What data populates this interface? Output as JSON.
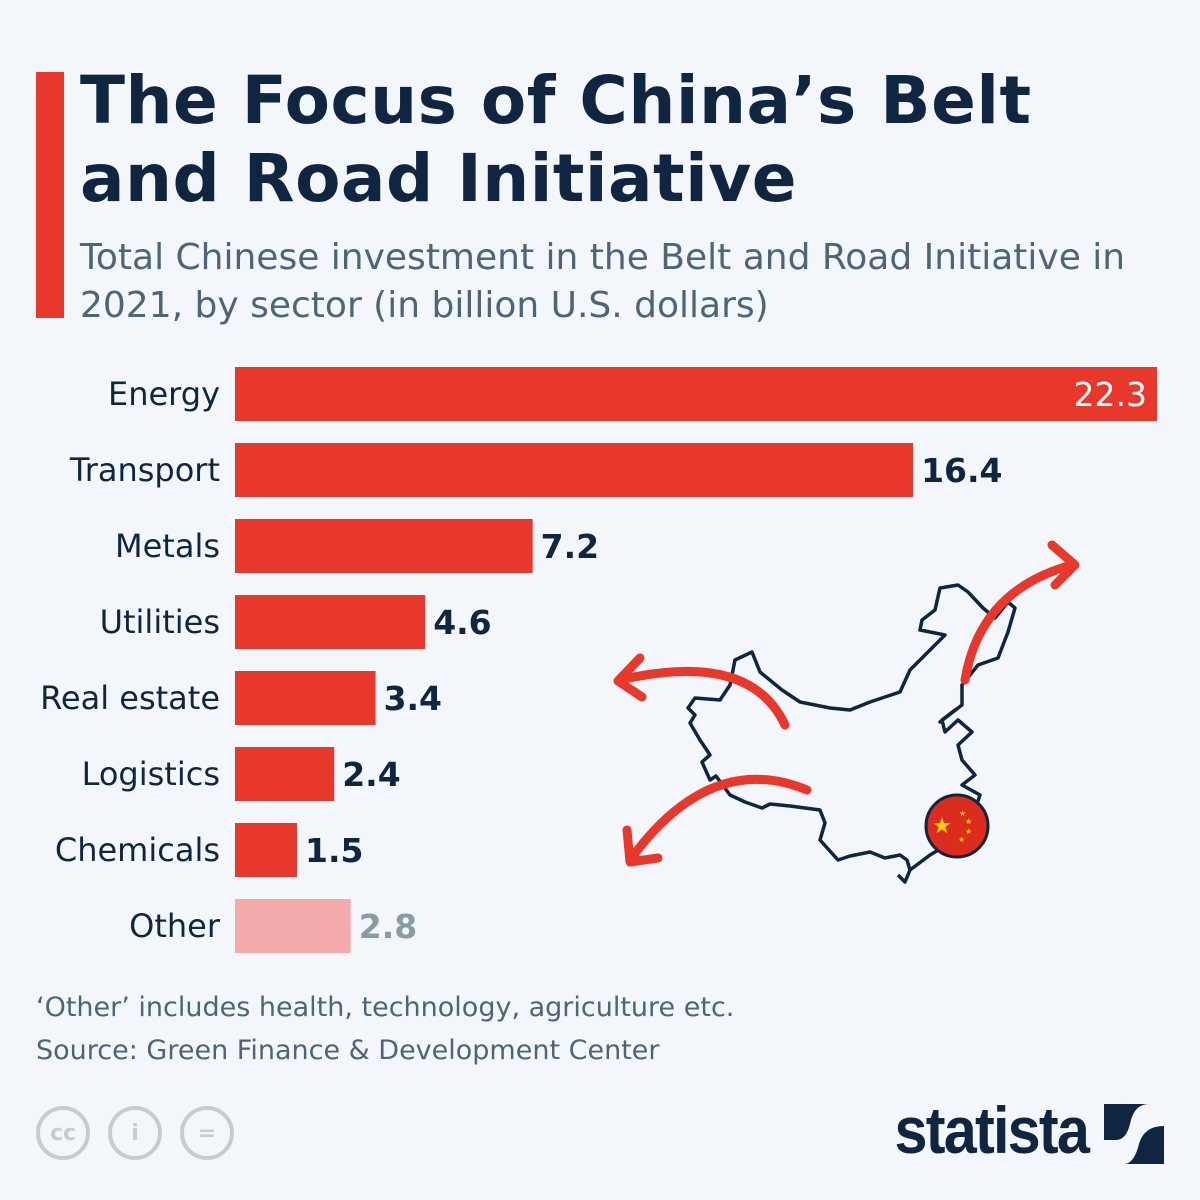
{
  "title": "The Focus of China’s Belt and Road Initiative",
  "subtitle": "Total Chinese investment in the Belt and Road Initiative in 2021, by sector (in billion U.S. dollars)",
  "footnote": "‘Other’ includes health, technology, agriculture etc.",
  "source": "Source: Green Finance & Development Center",
  "brand": "statista",
  "license_icons": [
    "cc-icon",
    "attribution-icon",
    "no-derivatives-icon"
  ],
  "colors": {
    "bar": "#e8372b",
    "other_bar": "#f4a9ab",
    "text": "#0f2540",
    "other_label": "#8a9aa6",
    "accent": "#e8372b"
  },
  "chart_data": {
    "type": "bar",
    "orientation": "horizontal",
    "categories": [
      "Energy",
      "Transport",
      "Metals",
      "Utilities",
      "Real estate",
      "Logistics",
      "Chemicals",
      "Other"
    ],
    "values": [
      22.3,
      16.4,
      7.2,
      4.6,
      3.4,
      2.4,
      1.5,
      2.8
    ],
    "data_labels": [
      "22.3",
      "16.4",
      "7.2",
      "4.6",
      "3.4",
      "2.4",
      "1.5",
      "2.8"
    ],
    "title": "The Focus of China’s Belt and Road Initiative",
    "xlim": [
      0,
      22.3
    ],
    "grid": false,
    "legend": "none"
  }
}
